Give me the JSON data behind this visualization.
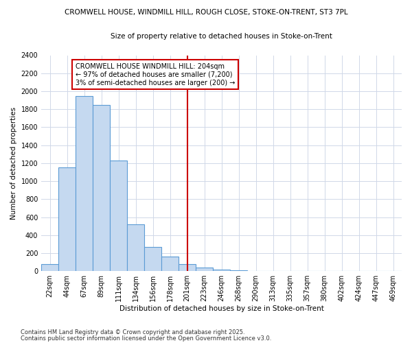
{
  "title1": "CROMWELL HOUSE, WINDMILL HILL, ROUGH CLOSE, STOKE-ON-TRENT, ST3 7PL",
  "title2": "Size of property relative to detached houses in Stoke-on-Trent",
  "xlabel": "Distribution of detached houses by size in Stoke-on-Trent",
  "ylabel": "Number of detached properties",
  "categories": [
    "22sqm",
    "44sqm",
    "67sqm",
    "89sqm",
    "111sqm",
    "134sqm",
    "156sqm",
    "178sqm",
    "201sqm",
    "223sqm",
    "246sqm",
    "268sqm",
    "290sqm",
    "313sqm",
    "335sqm",
    "357sqm",
    "380sqm",
    "402sqm",
    "424sqm",
    "447sqm",
    "469sqm"
  ],
  "values": [
    80,
    1150,
    1950,
    1850,
    1230,
    520,
    270,
    160,
    80,
    40,
    20,
    10,
    0,
    0,
    0,
    0,
    0,
    0,
    0,
    0,
    0
  ],
  "bar_color": "#c5d9f0",
  "bar_edge_color": "#5b9bd5",
  "vline_x_index": 8,
  "vline_color": "#cc0000",
  "ylim": [
    0,
    2400
  ],
  "yticks": [
    0,
    200,
    400,
    600,
    800,
    1000,
    1200,
    1400,
    1600,
    1800,
    2000,
    2200,
    2400
  ],
  "annotation_text": "CROMWELL HOUSE WINDMILL HILL: 204sqm\n← 97% of detached houses are smaller (7,200)\n3% of semi-detached houses are larger (200) →",
  "annotation_box_color": "#ffffff",
  "annotation_box_edge": "#cc0000",
  "footnote1": "Contains HM Land Registry data © Crown copyright and database right 2025.",
  "footnote2": "Contains public sector information licensed under the Open Government Licence v3.0.",
  "background_color": "#ffffff",
  "grid_color": "#d0d8e8",
  "fig_width": 6.0,
  "fig_height": 5.0,
  "dpi": 100
}
